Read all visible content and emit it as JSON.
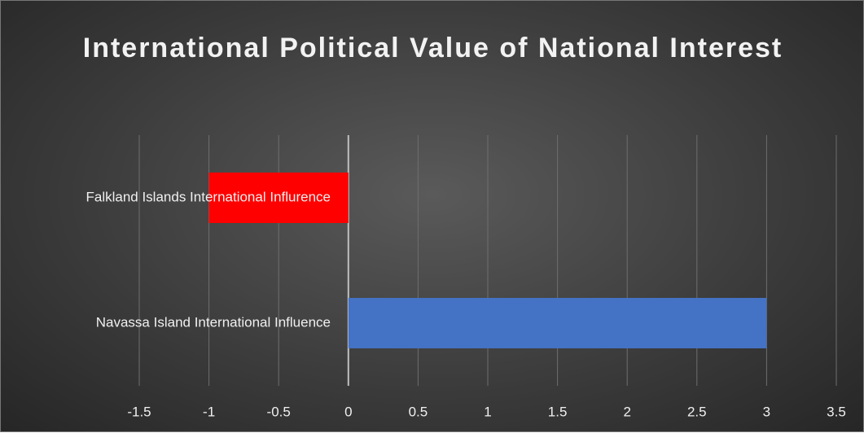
{
  "chart_data": {
    "type": "bar",
    "orientation": "horizontal",
    "title": "International Political Value of National Interest",
    "categories": [
      "Falkland Islands International Influrence",
      "Navassa Island International Influence"
    ],
    "values": [
      -1,
      3
    ],
    "colors": [
      "#ff0000",
      "#4472c4"
    ],
    "xlim": [
      -1.5,
      3.5
    ],
    "xticks": [
      -1.5,
      -1,
      -0.5,
      0,
      0.5,
      1,
      1.5,
      2,
      2.5,
      3,
      3.5
    ],
    "grid": true
  }
}
